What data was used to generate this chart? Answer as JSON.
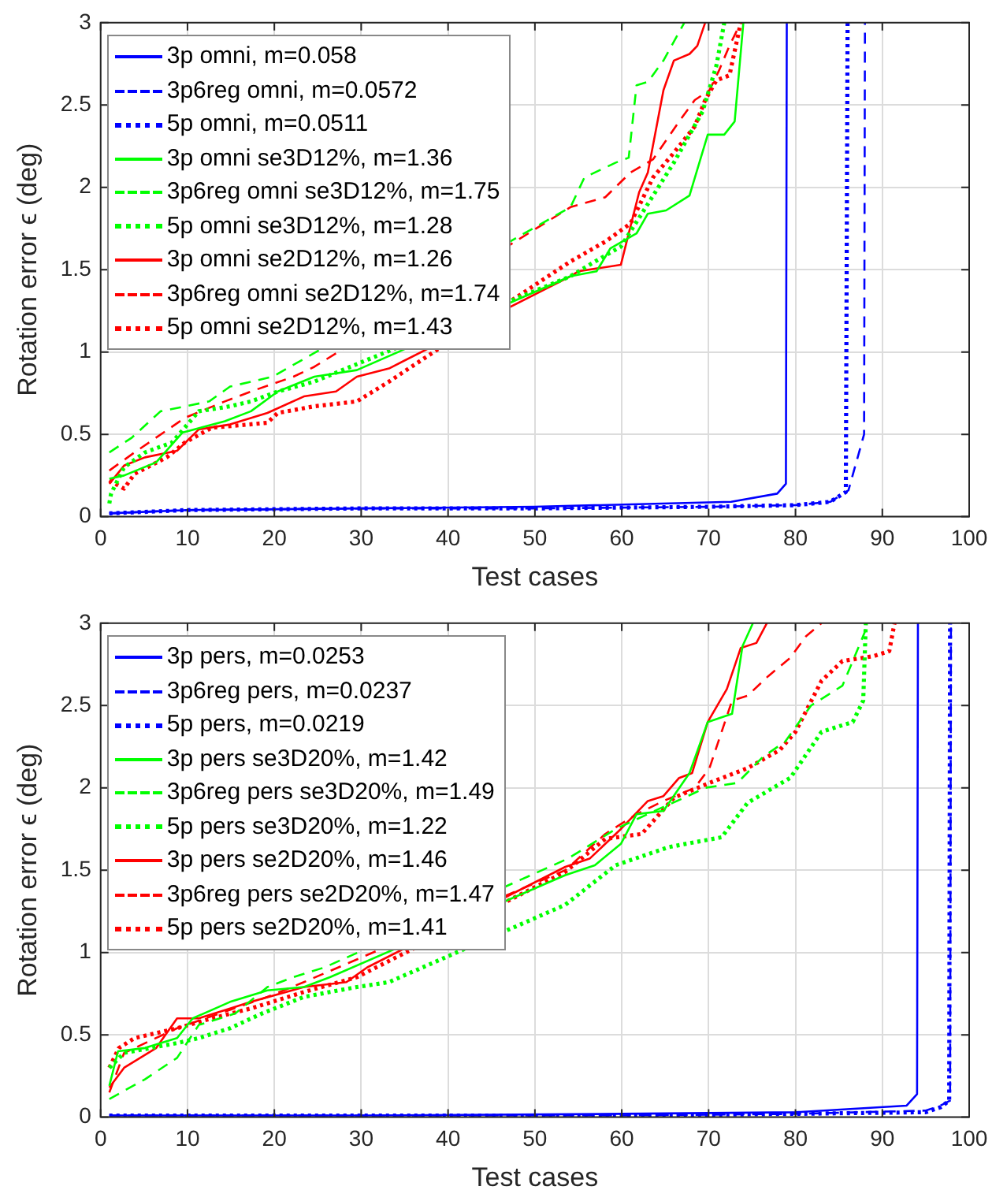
{
  "chart_data": [
    {
      "type": "line",
      "xlabel": "Test cases",
      "ylabel": "Rotation error ϵ (deg)",
      "xlim": [
        0,
        100
      ],
      "xticks": [
        0,
        10,
        20,
        30,
        40,
        50,
        60,
        70,
        80,
        90,
        100
      ],
      "ylim": [
        0,
        3
      ],
      "yticks": [
        0,
        0.5,
        1,
        1.5,
        2,
        2.5,
        3
      ],
      "grid": true,
      "legend": "top left",
      "marker": "none",
      "series": [
        {
          "name": "3p omni, m=0.058",
          "color": "#0000ff",
          "line_style": "solid",
          "x": [
            1,
            10,
            30,
            50,
            72.6,
            77.9,
            78.9,
            79
          ],
          "values": [
            0.02,
            0.04,
            0.05,
            0.06,
            0.09,
            0.14,
            0.2,
            3
          ]
        },
        {
          "name": "3p6reg omni, m=0.0572",
          "color": "#0000ff",
          "line_style": "dashed",
          "x": [
            1,
            10,
            30,
            50,
            70,
            80,
            84,
            86.1,
            87.9,
            88
          ],
          "values": [
            0.02,
            0.04,
            0.05,
            0.05,
            0.06,
            0.07,
            0.09,
            0.16,
            0.5,
            3
          ]
        },
        {
          "name": "5p omni, m=0.0511",
          "color": "#0000ff",
          "line_style": "dotted",
          "x": [
            1,
            10,
            30,
            50,
            70,
            80,
            84,
            85.8,
            86
          ],
          "values": [
            0.02,
            0.04,
            0.05,
            0.05,
            0.06,
            0.07,
            0.09,
            0.15,
            3
          ]
        },
        {
          "name": "3p omni se3D12%, m=1.36",
          "color": "#00ff00",
          "line_style": "solid",
          "x": [
            1,
            2.7,
            6.4,
            9.4,
            14.3,
            17.3,
            20.4,
            24.6,
            29.5,
            54.1,
            57.1,
            58.7,
            61.7,
            63,
            65.1,
            67.8,
            69.9,
            71.8,
            73,
            74
          ],
          "values": [
            0.23,
            0.25,
            0.33,
            0.51,
            0.58,
            0.64,
            0.76,
            0.85,
            0.89,
            1.46,
            1.49,
            1.63,
            1.72,
            1.84,
            1.86,
            1.95,
            2.32,
            2.32,
            2.4,
            3
          ]
        },
        {
          "name": "3p6reg omni se3D12%, m=1.75",
          "color": "#00ff00",
          "line_style": "dashed",
          "x": [
            1,
            3.6,
            6.9,
            8.8,
            12.5,
            14.9,
            19.8,
            54.1,
            55.7,
            59.3,
            60.8,
            61.7,
            63,
            64.8,
            67.2
          ],
          "values": [
            0.39,
            0.48,
            0.64,
            0.66,
            0.7,
            0.79,
            0.85,
            1.88,
            2.06,
            2.15,
            2.18,
            2.62,
            2.64,
            2.77,
            3
          ]
        },
        {
          "name": "5p omni se3D12%, m=1.28",
          "color": "#00ff00",
          "line_style": "dotted",
          "x": [
            1,
            1.2,
            2.7,
            5.1,
            8.2,
            11.3,
            14.9,
            17.3,
            20.4,
            24.6,
            54.1,
            56.3,
            59.9,
            62.3,
            66,
            69.3,
            70.9,
            71.8
          ],
          "values": [
            0.08,
            0.14,
            0.3,
            0.39,
            0.45,
            0.64,
            0.67,
            0.7,
            0.76,
            0.82,
            1.46,
            1.53,
            1.64,
            1.84,
            2.15,
            2.46,
            2.74,
            3
          ]
        },
        {
          "name": "3p omni se2D12%, m=1.26",
          "color": "#ff0000",
          "line_style": "solid",
          "x": [
            1,
            2.7,
            5.1,
            8.8,
            11.3,
            14.9,
            19.2,
            23.4,
            27.1,
            29.5,
            33.2,
            54.1,
            55,
            59.9,
            60.8,
            62,
            63,
            64.8,
            66,
            67.8,
            68.7,
            69.6
          ],
          "values": [
            0.2,
            0.31,
            0.36,
            0.4,
            0.53,
            0.56,
            0.63,
            0.73,
            0.76,
            0.85,
            0.9,
            1.46,
            1.49,
            1.53,
            1.72,
            1.97,
            2.09,
            2.59,
            2.77,
            2.81,
            2.86,
            3
          ]
        },
        {
          "name": "3p6reg omni se2D12%, m=1.74",
          "color": "#ff0000",
          "line_style": "dashed",
          "x": [
            1,
            3.9,
            9.7,
            14.3,
            17.3,
            22.2,
            24.6,
            54.1,
            58.1,
            61,
            63.6,
            66.6,
            68.4,
            70.1,
            71.2,
            72.4,
            73.7
          ],
          "values": [
            0.28,
            0.39,
            0.6,
            0.7,
            0.76,
            0.85,
            0.91,
            1.88,
            1.94,
            2.09,
            2.17,
            2.4,
            2.53,
            2.59,
            2.71,
            2.86,
            3
          ]
        },
        {
          "name": "5p omni se2D12%, m=1.43",
          "color": "#ff0000",
          "line_style": "dotted",
          "x": [
            1,
            2.7,
            3.9,
            7.6,
            9.7,
            12.8,
            19.2,
            20.4,
            24.6,
            29.5,
            33.2,
            54.1,
            58.1,
            61,
            63.6,
            66,
            68.4,
            69.6,
            70.9,
            72.4,
            73.7
          ],
          "values": [
            0.22,
            0.17,
            0.26,
            0.36,
            0.45,
            0.54,
            0.57,
            0.63,
            0.67,
            0.7,
            0.82,
            1.55,
            1.67,
            1.78,
            2.06,
            2.21,
            2.37,
            2.53,
            2.65,
            2.68,
            3
          ]
        }
      ]
    },
    {
      "type": "line",
      "xlabel": "Test cases",
      "ylabel": "Rotation error ϵ (deg)",
      "xlim": [
        0,
        100
      ],
      "xticks": [
        0,
        10,
        20,
        30,
        40,
        50,
        60,
        70,
        80,
        90,
        100
      ],
      "ylim": [
        0,
        3
      ],
      "yticks": [
        0,
        0.5,
        1,
        1.5,
        2,
        2.5,
        3
      ],
      "grid": true,
      "legend": "top left",
      "marker": "none",
      "series": [
        {
          "name": "3p pers, m=0.0253",
          "color": "#0000ff",
          "line_style": "solid",
          "x": [
            1,
            30,
            60,
            80,
            92.8,
            94,
            94.1
          ],
          "values": [
            0.01,
            0.01,
            0.02,
            0.03,
            0.07,
            0.14,
            3
          ]
        },
        {
          "name": "3p6reg pers, m=0.0237",
          "color": "#0000ff",
          "line_style": "dashed",
          "x": [
            1,
            30,
            60,
            80,
            95,
            96.7,
            97.8,
            97.9
          ],
          "values": [
            0.01,
            0.01,
            0.01,
            0.02,
            0.04,
            0.07,
            0.1,
            3
          ]
        },
        {
          "name": "5p pers, m=0.0219",
          "color": "#0000ff",
          "line_style": "dotted",
          "x": [
            1,
            30,
            60,
            80,
            95,
            96.7,
            97.7,
            97.8
          ],
          "values": [
            0.01,
            0.01,
            0.01,
            0.02,
            0.03,
            0.06,
            0.1,
            3
          ]
        },
        {
          "name": "3p pers se3D20%, m=1.42",
          "color": "#00ff00",
          "line_style": "solid",
          "x": [
            1,
            2,
            5.1,
            8.8,
            10.6,
            14.9,
            19.2,
            23.4,
            26.4,
            53.5,
            56.9,
            59.9,
            61.7,
            64.8,
            67.8,
            69.9,
            72.7,
            73.9,
            75.1
          ],
          "values": [
            0.19,
            0.4,
            0.42,
            0.48,
            0.6,
            0.7,
            0.77,
            0.79,
            0.85,
            1.47,
            1.53,
            1.66,
            1.84,
            1.86,
            2.09,
            2.4,
            2.45,
            2.86,
            3
          ]
        },
        {
          "name": "3p6reg pers se3D20%, m=1.49",
          "color": "#00ff00",
          "line_style": "dashed",
          "x": [
            1,
            5.1,
            8.8,
            11.3,
            15.5,
            19.2,
            22.2,
            25.8,
            53.8,
            59.3,
            64.2,
            67.2,
            69.6,
            73.3,
            76.3,
            78.8,
            81.8,
            85.4,
            86.6,
            88.4
          ],
          "values": [
            0.11,
            0.23,
            0.36,
            0.56,
            0.63,
            0.79,
            0.85,
            0.91,
            1.57,
            1.75,
            1.87,
            1.94,
            2,
            2.03,
            2.19,
            2.28,
            2.5,
            2.62,
            2.77,
            3
          ]
        },
        {
          "name": "5p pers se3D20%, m=1.22",
          "color": "#00ff00",
          "line_style": "dotted",
          "x": [
            1,
            2.7,
            8.8,
            11.3,
            14.9,
            18.6,
            23.4,
            26.4,
            29.5,
            33.2,
            53.5,
            59.3,
            65.4,
            68.4,
            71.5,
            74.5,
            79.4,
            83,
            86.6,
            87.8,
            88.1
          ],
          "values": [
            0.3,
            0.39,
            0.45,
            0.48,
            0.54,
            0.63,
            0.73,
            0.76,
            0.79,
            0.82,
            1.29,
            1.53,
            1.64,
            1.67,
            1.7,
            1.91,
            2.06,
            2.34,
            2.4,
            2.53,
            3
          ]
        },
        {
          "name": "3p pers se2D20%, m=1.46",
          "color": "#ff0000",
          "line_style": "solid",
          "x": [
            1,
            2.7,
            6.4,
            8.8,
            11.3,
            14.9,
            17.3,
            23.4,
            28.3,
            30.7,
            53.5,
            56.3,
            59.9,
            63,
            64.8,
            66.6,
            68.1,
            69.9,
            72.1,
            73.7,
            75.5,
            76.7
          ],
          "values": [
            0.18,
            0.3,
            0.42,
            0.6,
            0.6,
            0.66,
            0.7,
            0.79,
            0.82,
            0.91,
            1.52,
            1.57,
            1.75,
            1.92,
            1.95,
            2.06,
            2.09,
            2.4,
            2.6,
            2.85,
            2.88,
            3
          ]
        },
        {
          "name": "3p6reg pers se2D20%, m=1.47",
          "color": "#ff0000",
          "line_style": "dashed",
          "x": [
            1,
            2.7,
            8.8,
            13.7,
            19.2,
            23.4,
            53.5,
            58.1,
            61.7,
            64.8,
            68.4,
            70.1,
            72.7,
            74.5,
            76.9,
            79.4,
            81.2,
            83
          ],
          "values": [
            0.15,
            0.39,
            0.54,
            0.63,
            0.73,
            0.82,
            1.5,
            1.72,
            1.84,
            1.92,
            2,
            2.12,
            2.53,
            2.56,
            2.68,
            2.79,
            2.92,
            3
          ]
        },
        {
          "name": "5p pers se2D20%, m=1.41",
          "color": "#ff0000",
          "line_style": "dotted",
          "x": [
            1,
            2.1,
            3.9,
            8.8,
            12.8,
            17.3,
            23.4,
            29.5,
            53.5,
            58.1,
            62.3,
            66,
            70.1,
            74.5,
            78.2,
            80,
            83,
            85.4,
            89,
            90.8,
            91.4
          ],
          "values": [
            0.3,
            0.42,
            0.48,
            0.54,
            0.6,
            0.66,
            0.76,
            0.85,
            1.49,
            1.69,
            1.72,
            1.94,
            2.03,
            2.12,
            2.23,
            2.34,
            2.65,
            2.77,
            2.8,
            2.83,
            3
          ]
        }
      ]
    }
  ]
}
